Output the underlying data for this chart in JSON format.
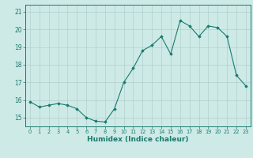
{
  "x": [
    0,
    1,
    2,
    3,
    4,
    5,
    6,
    7,
    8,
    9,
    10,
    11,
    12,
    13,
    14,
    15,
    16,
    17,
    18,
    19,
    20,
    21,
    22,
    23
  ],
  "y": [
    15.9,
    15.6,
    15.7,
    15.8,
    15.7,
    15.5,
    15.0,
    14.8,
    14.75,
    15.5,
    17.0,
    17.8,
    18.8,
    19.1,
    19.6,
    18.6,
    20.5,
    20.2,
    19.6,
    20.2,
    20.1,
    19.6,
    17.4,
    16.8
  ],
  "line_color": "#1a7a6e",
  "marker": "D",
  "markersize": 1.8,
  "linewidth": 0.8,
  "bg_color": "#ceeae7",
  "grid_color": "#b0d0cc",
  "tick_color": "#1a7a6e",
  "xlabel": "Humidex (Indice chaleur)",
  "xlabel_fontsize": 6.5,
  "xlabel_color": "#1a7a6e",
  "ylabel_ticks": [
    15,
    16,
    17,
    18,
    19,
    20,
    21
  ],
  "ylim": [
    14.5,
    21.4
  ],
  "xlim": [
    -0.5,
    23.5
  ],
  "xtick_fontsize": 4.8,
  "ytick_fontsize": 5.5,
  "spine_color": "#1a7a6e"
}
